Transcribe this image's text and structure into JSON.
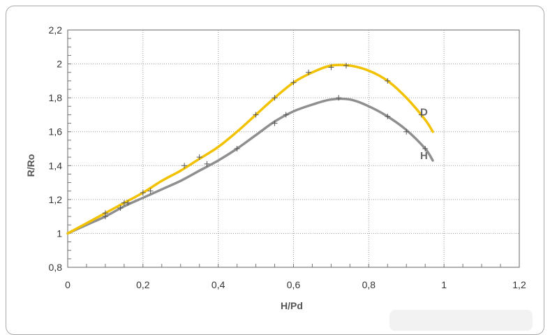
{
  "chart_data": {
    "type": "line",
    "xlabel": "H/Pd",
    "ylabel": "R/Ro",
    "xlim": [
      0,
      1.2
    ],
    "ylim": [
      0.8,
      2.2
    ],
    "x_ticks": [
      "0",
      "0,2",
      "0,4",
      "0,6",
      "0,8",
      "1",
      "1,2"
    ],
    "y_ticks": [
      "0,8",
      "1",
      "1,2",
      "1,4",
      "1,6",
      "1,8",
      "2",
      "2,2"
    ],
    "grid": true,
    "series": [
      {
        "name": "D",
        "color": "#f2c200",
        "x": [
          0,
          0.05,
          0.1,
          0.15,
          0.2,
          0.25,
          0.3,
          0.35,
          0.4,
          0.45,
          0.5,
          0.55,
          0.6,
          0.65,
          0.7,
          0.75,
          0.8,
          0.85,
          0.9,
          0.95,
          0.97
        ],
        "y": [
          1.0,
          1.06,
          1.12,
          1.18,
          1.24,
          1.31,
          1.37,
          1.44,
          1.51,
          1.6,
          1.7,
          1.8,
          1.89,
          1.95,
          1.99,
          1.99,
          1.96,
          1.9,
          1.8,
          1.67,
          1.6
        ]
      },
      {
        "name": "H",
        "color": "#8f8f8f",
        "x": [
          0,
          0.05,
          0.1,
          0.15,
          0.2,
          0.25,
          0.3,
          0.35,
          0.4,
          0.45,
          0.5,
          0.55,
          0.6,
          0.65,
          0.7,
          0.75,
          0.8,
          0.85,
          0.9,
          0.95,
          0.97
        ],
        "y": [
          1.0,
          1.05,
          1.1,
          1.16,
          1.21,
          1.26,
          1.31,
          1.37,
          1.43,
          1.5,
          1.58,
          1.66,
          1.72,
          1.76,
          1.79,
          1.79,
          1.75,
          1.69,
          1.61,
          1.5,
          1.43
        ]
      }
    ],
    "markers": {
      "color": "#555555",
      "D": [
        [
          0.1,
          1.12
        ],
        [
          0.15,
          1.18
        ],
        [
          0.2,
          1.24
        ],
        [
          0.31,
          1.4
        ],
        [
          0.35,
          1.45
        ],
        [
          0.5,
          1.7
        ],
        [
          0.55,
          1.8
        ],
        [
          0.6,
          1.89
        ],
        [
          0.64,
          1.95
        ],
        [
          0.7,
          1.98
        ],
        [
          0.74,
          1.99
        ],
        [
          0.85,
          1.9
        ],
        [
          0.94,
          1.7
        ]
      ],
      "H": [
        [
          0.1,
          1.1
        ],
        [
          0.14,
          1.15
        ],
        [
          0.16,
          1.18
        ],
        [
          0.22,
          1.25
        ],
        [
          0.37,
          1.41
        ],
        [
          0.45,
          1.5
        ],
        [
          0.55,
          1.65
        ],
        [
          0.58,
          1.7
        ],
        [
          0.72,
          1.8
        ],
        [
          0.85,
          1.69
        ],
        [
          0.9,
          1.6
        ],
        [
          0.95,
          1.5
        ]
      ]
    }
  }
}
